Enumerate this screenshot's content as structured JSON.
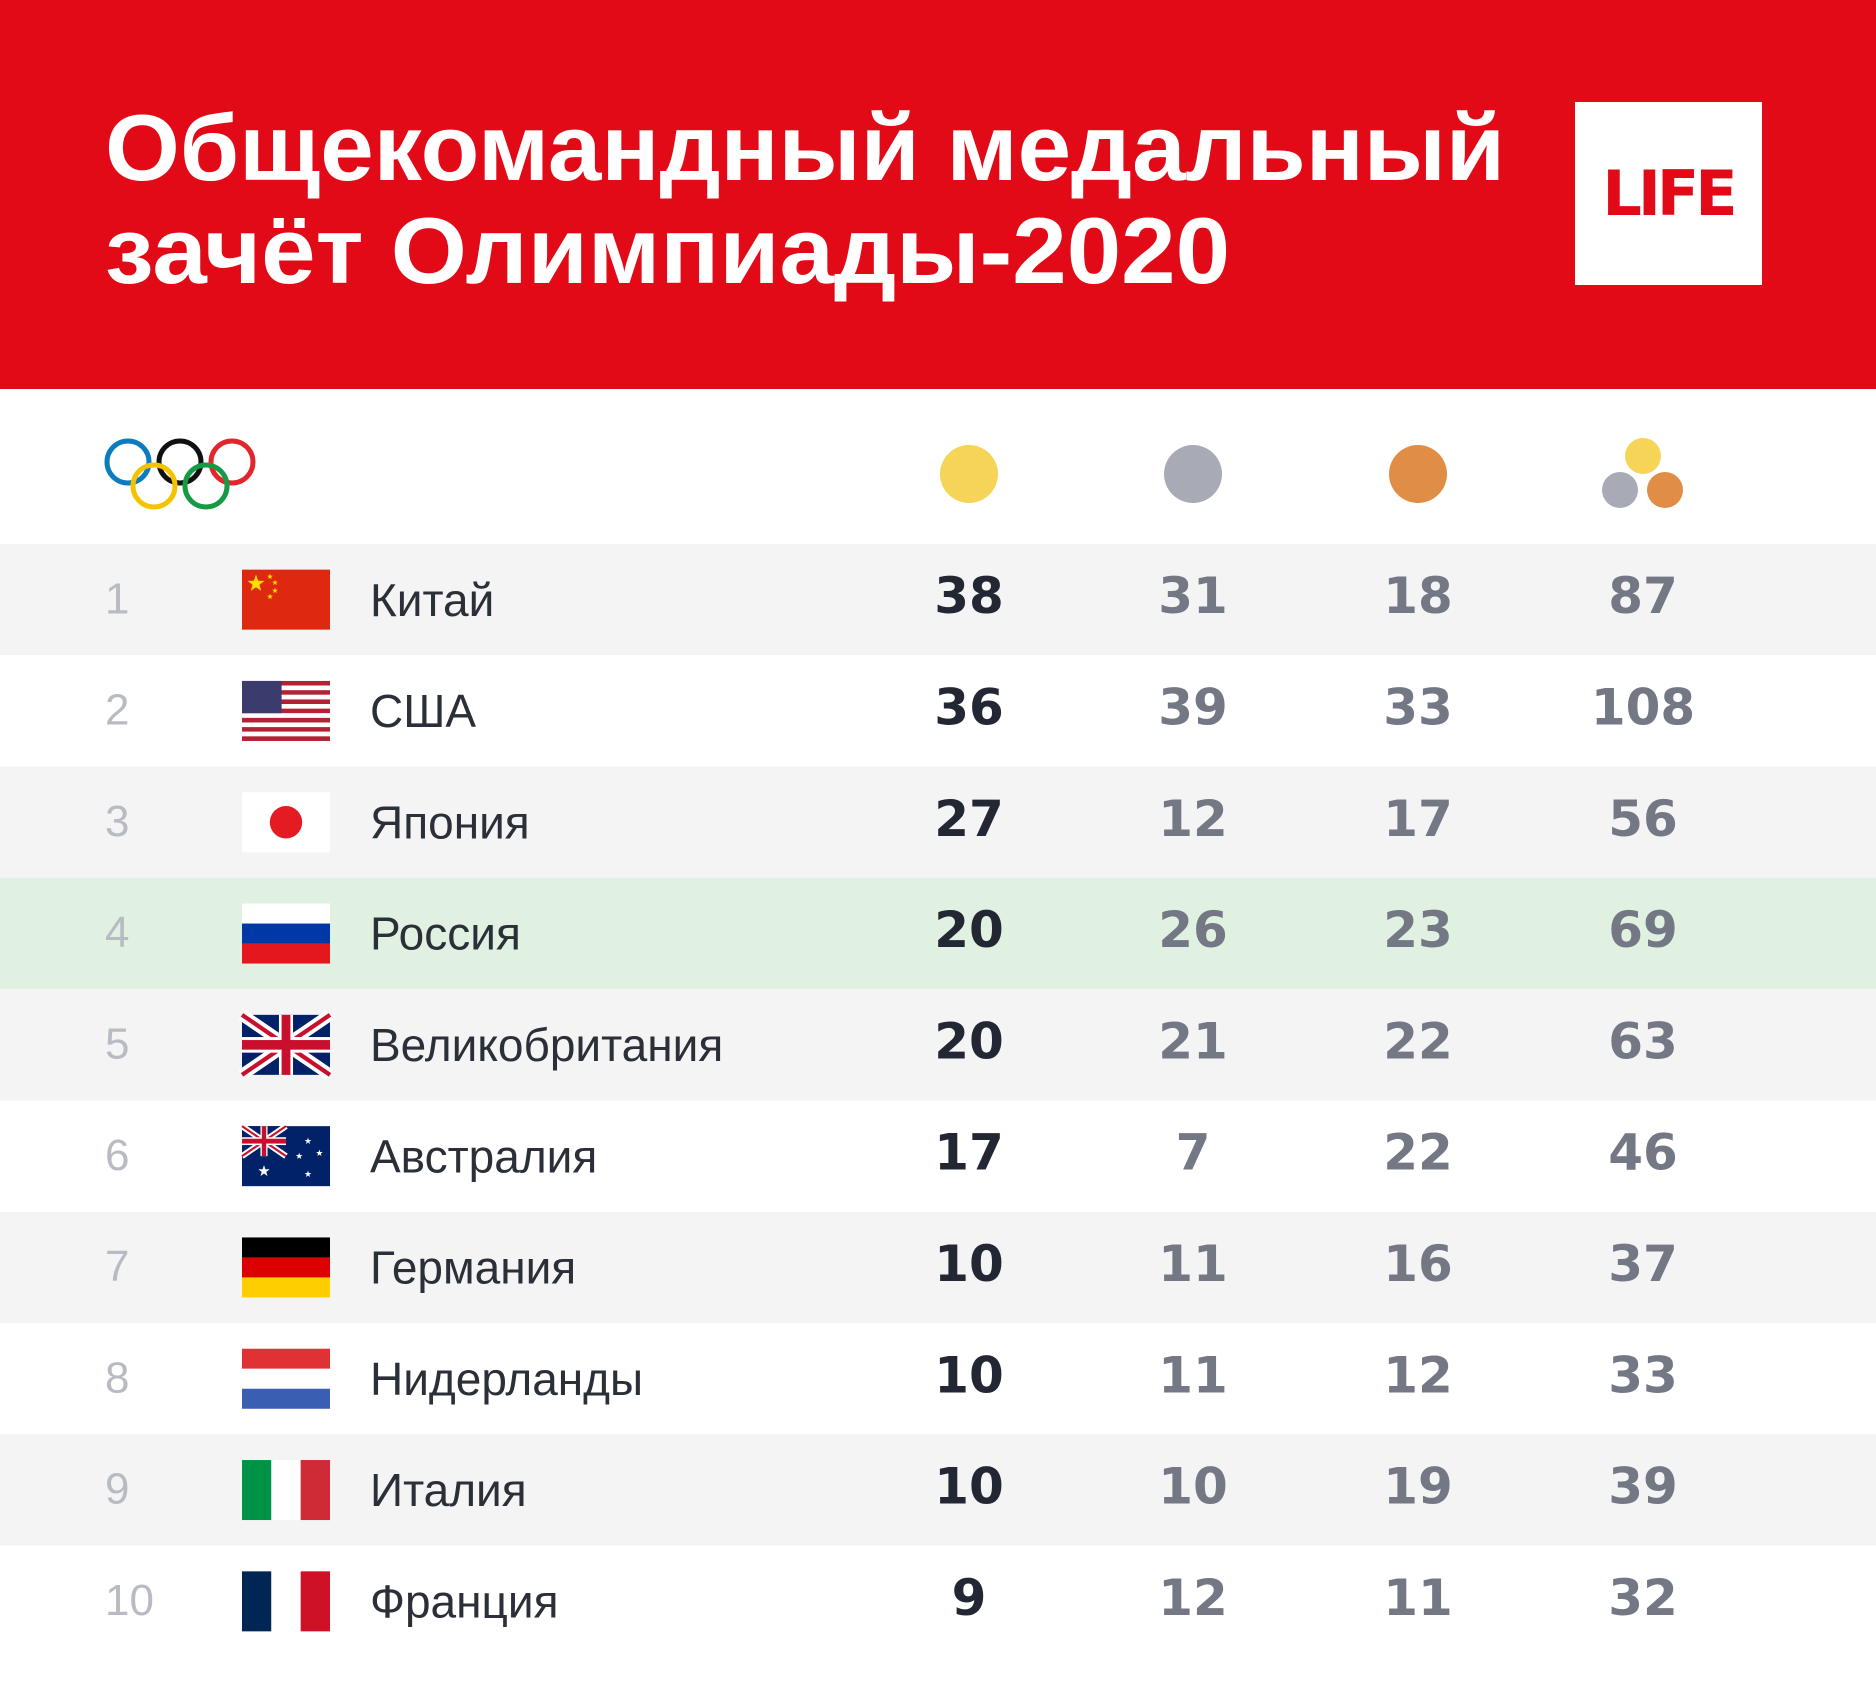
{
  "header": {
    "title_lines": [
      "Общекомандный медальный",
      "зачёт Олимпиады-2020"
    ],
    "logo": "LIFE"
  },
  "table": {
    "rows": [
      {
        "rank": 1,
        "country": "Китай",
        "gold": 38,
        "silver": 31,
        "bronze": 18,
        "total": 87
      },
      {
        "rank": 2,
        "country": "США",
        "gold": 36,
        "silver": 39,
        "bronze": 33,
        "total": 108
      },
      {
        "rank": 3,
        "country": "Япония",
        "gold": 27,
        "silver": 12,
        "bronze": 17,
        "total": 56
      },
      {
        "rank": 4,
        "country": "Россия",
        "gold": 20,
        "silver": 26,
        "bronze": 23,
        "total": 69
      },
      {
        "rank": 5,
        "country": "Великобритания",
        "gold": 20,
        "silver": 21,
        "bronze": 22,
        "total": 63
      },
      {
        "rank": 6,
        "country": "Австралия",
        "gold": 17,
        "silver": 7,
        "bronze": 22,
        "total": 46
      },
      {
        "rank": 7,
        "country": "Германия",
        "gold": 10,
        "silver": 11,
        "bronze": 16,
        "total": 37
      },
      {
        "rank": 8,
        "country": "Нидерланды",
        "gold": 10,
        "silver": 11,
        "bronze": 12,
        "total": 33
      },
      {
        "rank": 9,
        "country": "Италия",
        "gold": 10,
        "silver": 10,
        "bronze": 19,
        "total": 39
      },
      {
        "rank": 10,
        "country": "Франция",
        "gold": 9,
        "silver": 12,
        "bronze": 11,
        "total": 32
      }
    ]
  }
}
